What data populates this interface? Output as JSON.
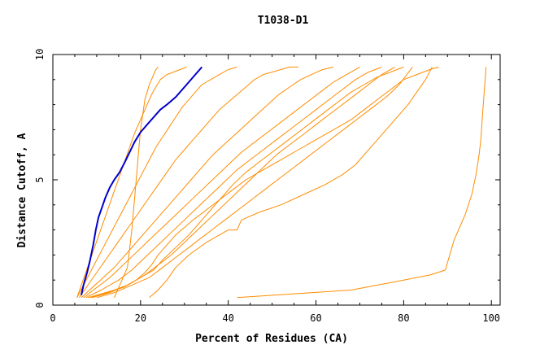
{
  "chart_data": {
    "type": "line",
    "title": "T1038-D1",
    "xlabel": "Percent of Residues (CA)",
    "ylabel": "Distance Cutoff, A",
    "xlim": [
      0,
      102
    ],
    "ylim": [
      0,
      10
    ],
    "x_ticks": [
      0,
      20,
      40,
      60,
      80,
      100
    ],
    "y_ticks": [
      0,
      5,
      10
    ],
    "grid": false,
    "colors": {
      "highlight": "#0000cc",
      "models": "#ff8c00"
    },
    "series": [
      {
        "role": "highlight",
        "x": [
          6.5,
          7.0,
          7.8,
          8.5,
          9.2,
          9.8,
          10.4,
          11.2,
          12.0,
          13.0,
          14.0,
          15.2,
          16.4,
          17.5,
          18.6,
          20.0,
          21.5,
          23.0,
          24.5,
          26.0,
          28.0,
          29.5,
          31.0,
          32.5,
          34.0
        ],
        "y": [
          0.4,
          0.8,
          1.3,
          1.8,
          2.4,
          3.0,
          3.5,
          3.9,
          4.3,
          4.7,
          5.0,
          5.3,
          5.7,
          6.1,
          6.5,
          6.9,
          7.2,
          7.5,
          7.8,
          8.0,
          8.3,
          8.6,
          8.9,
          9.2,
          9.5
        ]
      },
      {
        "x": [
          42.0,
          55.0,
          68.0,
          74.0,
          80.0,
          86.0,
          89.5,
          90.5,
          91.5,
          92.5,
          94.0,
          95.5,
          96.5,
          97.2,
          97.6,
          97.9,
          98.2,
          98.5,
          98.8
        ],
        "y": [
          0.3,
          0.45,
          0.6,
          0.8,
          1.0,
          1.2,
          1.4,
          2.0,
          2.6,
          3.0,
          3.6,
          4.4,
          5.2,
          6.0,
          6.6,
          7.4,
          8.1,
          8.8,
          9.5
        ]
      },
      {
        "x": [
          22.0,
          24.0,
          26.0,
          28.0,
          31.0,
          35.0,
          40.0,
          42.0,
          43.0,
          47.0,
          52.0,
          57.0,
          62.0,
          66.0,
          69.0,
          71.0,
          73.0,
          75.0,
          77.0,
          79.0,
          81.0,
          83.0,
          85.0,
          86.5
        ],
        "y": [
          0.3,
          0.6,
          1.0,
          1.5,
          2.0,
          2.5,
          3.0,
          3.0,
          3.4,
          3.7,
          4.0,
          4.4,
          4.8,
          5.2,
          5.6,
          6.0,
          6.4,
          6.8,
          7.2,
          7.6,
          8.0,
          8.5,
          9.0,
          9.5
        ]
      },
      {
        "x": [
          8.0,
          12.0,
          16.0,
          19.0,
          21.0,
          22.5,
          24.0,
          26.0,
          28.0,
          30.0,
          32.0,
          35.0,
          38.0,
          41.0,
          44.0,
          48.0,
          52.0,
          56.0,
          60.0,
          64.0,
          68.0,
          71.0,
          74.0,
          77.0,
          80.0,
          83.0,
          86.0,
          88.0
        ],
        "y": [
          0.3,
          0.5,
          0.7,
          1.0,
          1.3,
          1.6,
          2.0,
          2.4,
          2.8,
          3.1,
          3.4,
          3.8,
          4.2,
          4.6,
          5.0,
          5.4,
          5.8,
          6.2,
          6.6,
          7.0,
          7.4,
          7.8,
          8.2,
          8.6,
          9.0,
          9.2,
          9.4,
          9.5
        ]
      },
      {
        "x": [
          8.5,
          12.5,
          17.0,
          20.0,
          23.0,
          25.0,
          28.0,
          31.0,
          33.5,
          36.0,
          38.5,
          41.0,
          44.0,
          47.0,
          50.0,
          53.0,
          56.0,
          59.0,
          62.0,
          65.0,
          68.0,
          71.0,
          74.0,
          77.0,
          80.0
        ],
        "y": [
          0.3,
          0.5,
          0.8,
          1.1,
          1.4,
          1.8,
          2.3,
          2.8,
          3.3,
          3.8,
          4.3,
          4.8,
          5.3,
          5.7,
          6.1,
          6.5,
          6.9,
          7.3,
          7.7,
          8.1,
          8.5,
          8.8,
          9.1,
          9.3,
          9.5
        ]
      },
      {
        "x": [
          7.5,
          11.0,
          15.0,
          18.0,
          21.0,
          24.0,
          27.0,
          30.0,
          33.0,
          36.0,
          39.0,
          42.0,
          45.0,
          48.0,
          51.0,
          54.0,
          57.0,
          60.0,
          63.0,
          66.0,
          69.0,
          72.0,
          75.0
        ],
        "y": [
          0.3,
          0.6,
          1.0,
          1.4,
          1.9,
          2.4,
          2.9,
          3.4,
          3.9,
          4.4,
          4.9,
          5.4,
          5.8,
          6.2,
          6.6,
          7.0,
          7.4,
          7.8,
          8.2,
          8.6,
          9.0,
          9.3,
          9.5
        ]
      },
      {
        "x": [
          7.0,
          10.0,
          13.0,
          16.0,
          19.0,
          22.0,
          25.0,
          28.0,
          31.0,
          34.0,
          37.0,
          40.0,
          43.0,
          46.0,
          49.0,
          52.0,
          55.0,
          58.0,
          61.0,
          64.0,
          67.0,
          70.0
        ],
        "y": [
          0.3,
          0.7,
          1.1,
          1.6,
          2.1,
          2.6,
          3.1,
          3.6,
          4.1,
          4.6,
          5.1,
          5.6,
          6.1,
          6.5,
          6.9,
          7.3,
          7.7,
          8.1,
          8.5,
          8.9,
          9.2,
          9.5
        ]
      },
      {
        "x": [
          6.5,
          9.0,
          11.5,
          14.0,
          16.5,
          19.0,
          21.5,
          24.0,
          26.5,
          29.0,
          31.5,
          34.0,
          36.5,
          39.0,
          41.5,
          44.0,
          46.5,
          49.0,
          51.5,
          54.0,
          56.5,
          59.0,
          61.5,
          64.0
        ],
        "y": [
          0.3,
          0.7,
          1.1,
          1.5,
          2.0,
          2.5,
          3.0,
          3.5,
          4.0,
          4.5,
          5.0,
          5.5,
          6.0,
          6.4,
          6.8,
          7.2,
          7.6,
          8.0,
          8.4,
          8.7,
          9.0,
          9.2,
          9.4,
          9.5
        ]
      },
      {
        "x": [
          6.0,
          8.0,
          10.0,
          12.0,
          14.0,
          16.0,
          18.0,
          20.0,
          22.0,
          24.0,
          26.0,
          28.0,
          30.0,
          32.0,
          34.0,
          36.0,
          38.0,
          40.0,
          42.0,
          44.0,
          46.0,
          48.0,
          50.0,
          52.0,
          54.0,
          56.0
        ],
        "y": [
          0.3,
          0.8,
          1.3,
          1.8,
          2.3,
          2.8,
          3.3,
          3.8,
          4.3,
          4.8,
          5.3,
          5.8,
          6.2,
          6.6,
          7.0,
          7.4,
          7.8,
          8.1,
          8.4,
          8.7,
          9.0,
          9.2,
          9.3,
          9.4,
          9.5,
          9.5
        ]
      },
      {
        "x": [
          5.5,
          7.0,
          8.5,
          10.0,
          11.5,
          13.0,
          14.5,
          16.0,
          17.5,
          19.0,
          20.5,
          22.0,
          23.5,
          25.0,
          26.5,
          28.0,
          29.5,
          31.0,
          32.5,
          34.0,
          36.0,
          38.0,
          40.0,
          42.0
        ],
        "y": [
          0.3,
          0.8,
          1.3,
          1.8,
          2.3,
          2.8,
          3.3,
          3.8,
          4.3,
          4.8,
          5.3,
          5.8,
          6.3,
          6.7,
          7.1,
          7.5,
          7.9,
          8.2,
          8.5,
          8.8,
          9.0,
          9.2,
          9.4,
          9.5
        ]
      },
      {
        "x": [
          5.5,
          6.5,
          7.5,
          8.5,
          9.5,
          10.5,
          11.5,
          12.5,
          13.5,
          14.5,
          15.5,
          16.5,
          17.5,
          18.5,
          19.5,
          20.5,
          21.5,
          22.5,
          23.5,
          24.5,
          26.0,
          27.5,
          29.0,
          30.5
        ],
        "y": [
          0.3,
          0.8,
          1.3,
          1.8,
          2.3,
          2.8,
          3.3,
          3.8,
          4.3,
          4.8,
          5.3,
          5.8,
          6.3,
          6.8,
          7.2,
          7.6,
          8.0,
          8.4,
          8.7,
          9.0,
          9.2,
          9.3,
          9.4,
          9.5
        ]
      },
      {
        "x": [
          14.0,
          17.0,
          18.0,
          18.5,
          19.0,
          19.5,
          20.0,
          20.5,
          21.0,
          21.5,
          22.0,
          22.5,
          23.0,
          23.5,
          24.0
        ],
        "y": [
          0.3,
          1.5,
          3.0,
          4.0,
          5.0,
          6.0,
          7.0,
          7.6,
          8.2,
          8.5,
          8.8,
          9.0,
          9.2,
          9.4,
          9.5
        ]
      },
      {
        "x": [
          10.0,
          14.0,
          18.0,
          22.0,
          25.0,
          28.0,
          31.0,
          34.0,
          37.0,
          40.0,
          43.0,
          46.0,
          49.0,
          52.0,
          55.0,
          58.0,
          61.0,
          64.0,
          67.0,
          70.0,
          73.0,
          76.0,
          79.0,
          82.0
        ],
        "y": [
          0.3,
          0.5,
          0.8,
          1.1,
          1.5,
          1.9,
          2.3,
          2.7,
          3.1,
          3.5,
          3.9,
          4.3,
          4.7,
          5.1,
          5.5,
          5.9,
          6.3,
          6.7,
          7.1,
          7.5,
          7.9,
          8.3,
          8.8,
          9.5
        ]
      },
      {
        "x": [
          9.0,
          13.0,
          17.0,
          21.0,
          24.0,
          27.0,
          30.0,
          33.0,
          36.0,
          39.0,
          42.0,
          45.0,
          48.0,
          51.0,
          54.0,
          57.0,
          60.0,
          63.0,
          66.0,
          69.0,
          72.0,
          75.0,
          78.0
        ],
        "y": [
          0.3,
          0.5,
          0.8,
          1.2,
          1.6,
          2.0,
          2.5,
          3.0,
          3.5,
          4.0,
          4.5,
          5.0,
          5.5,
          6.0,
          6.4,
          6.8,
          7.2,
          7.6,
          8.0,
          8.4,
          8.8,
          9.2,
          9.5
        ]
      }
    ]
  }
}
